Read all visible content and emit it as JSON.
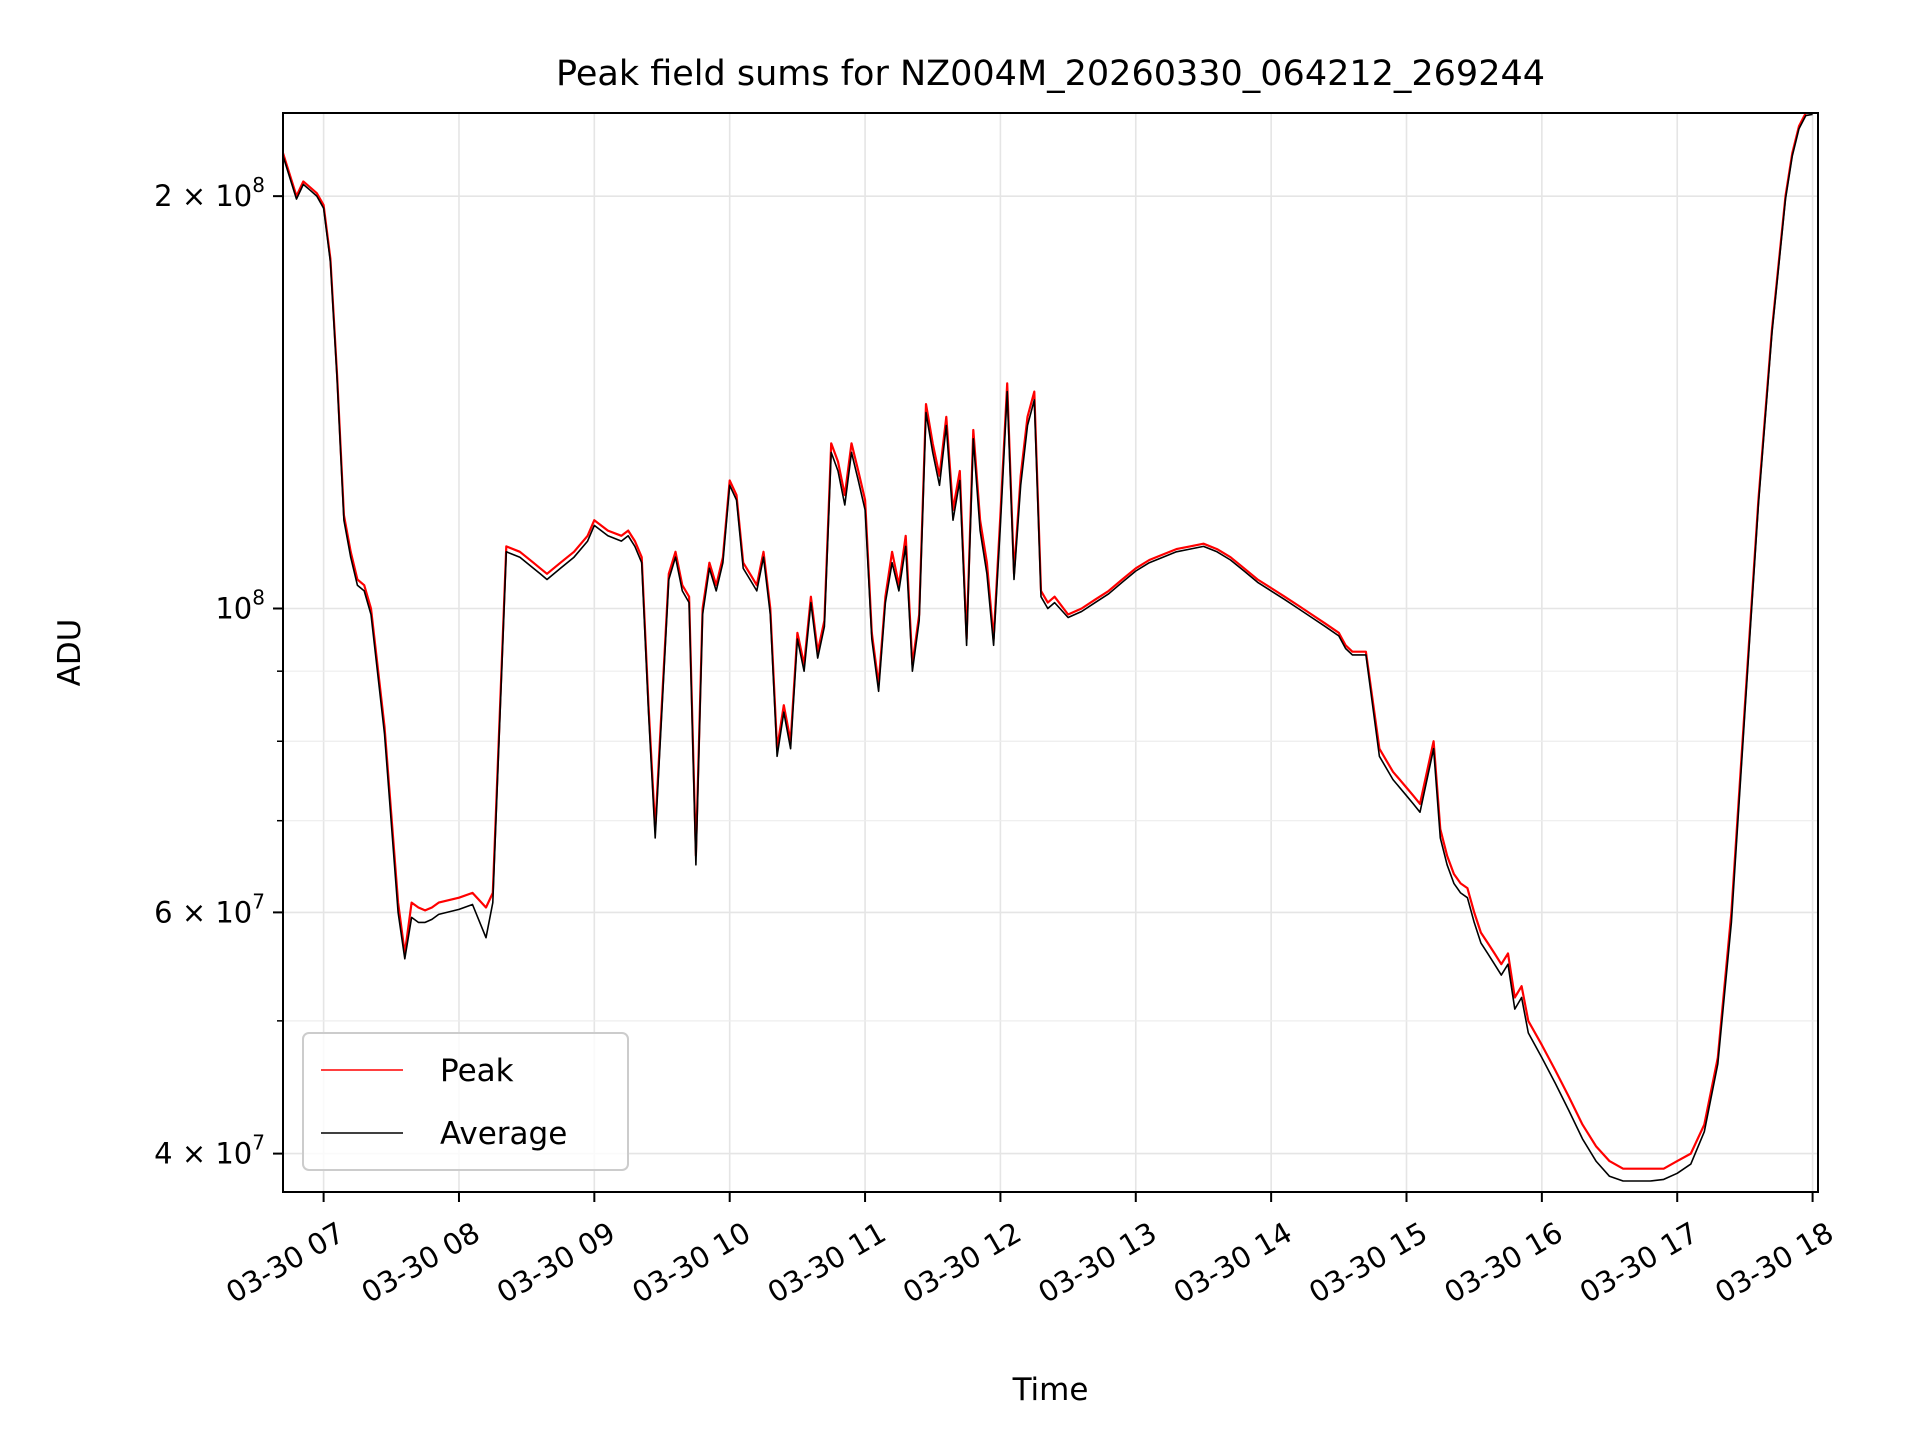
{
  "chart_data": {
    "type": "line",
    "title": "Peak field sums for NZ004M_20260330_064212_269244",
    "xlabel": "Time",
    "ylabel": "ADU",
    "yscale": "log",
    "ylim": [
      37500000,
      230000000
    ],
    "xlim_hours": [
      6.7,
      18.04
    ],
    "grid": true,
    "legend_position": "lower-left",
    "colors": {
      "peak": "#ff0000",
      "average": "#000000"
    },
    "x_ticks": [
      {
        "hour": 7,
        "label": "03-30 07"
      },
      {
        "hour": 8,
        "label": "03-30 08"
      },
      {
        "hour": 9,
        "label": "03-30 09"
      },
      {
        "hour": 10,
        "label": "03-30 10"
      },
      {
        "hour": 11,
        "label": "03-30 11"
      },
      {
        "hour": 12,
        "label": "03-30 12"
      },
      {
        "hour": 13,
        "label": "03-30 13"
      },
      {
        "hour": 14,
        "label": "03-30 14"
      },
      {
        "hour": 15,
        "label": "03-30 15"
      },
      {
        "hour": 16,
        "label": "03-30 16"
      },
      {
        "hour": 17,
        "label": "03-30 17"
      },
      {
        "hour": 18,
        "label": "03-30 18"
      }
    ],
    "y_major_ticks": [
      {
        "value": 40000000,
        "mantissa": "4",
        "exp": "7"
      },
      {
        "value": 60000000,
        "mantissa": "6",
        "exp": "7"
      },
      {
        "value": 100000000,
        "mantissa": "",
        "exp": "8"
      },
      {
        "value": 200000000,
        "mantissa": "2",
        "exp": "8"
      }
    ],
    "y_minor_ticks": [
      50000000,
      70000000,
      80000000,
      90000000
    ],
    "series": [
      {
        "name": "Peak",
        "time_hours": [
          6.7,
          6.8,
          6.85,
          6.9,
          6.95,
          7.0,
          7.05,
          7.1,
          7.15,
          7.2,
          7.25,
          7.3,
          7.35,
          7.45,
          7.55,
          7.6,
          7.65,
          7.7,
          7.75,
          7.8,
          7.85,
          8.0,
          8.1,
          8.2,
          8.25,
          8.35,
          8.45,
          8.55,
          8.6,
          8.65,
          8.75,
          8.85,
          8.95,
          9.0,
          9.1,
          9.2,
          9.25,
          9.3,
          9.35,
          9.4,
          9.45,
          9.55,
          9.6,
          9.65,
          9.7,
          9.75,
          9.8,
          9.85,
          9.9,
          9.95,
          10.0,
          10.05,
          10.1,
          10.15,
          10.2,
          10.25,
          10.3,
          10.35,
          10.4,
          10.45,
          10.5,
          10.55,
          10.6,
          10.65,
          10.7,
          10.75,
          10.8,
          10.85,
          10.9,
          10.95,
          11.0,
          11.05,
          11.1,
          11.15,
          11.2,
          11.25,
          11.3,
          11.35,
          11.4,
          11.45,
          11.5,
          11.55,
          11.6,
          11.65,
          11.7,
          11.75,
          11.8,
          11.85,
          11.9,
          11.95,
          12.0,
          12.05,
          12.1,
          12.15,
          12.2,
          12.25,
          12.3,
          12.35,
          12.4,
          12.5,
          12.6,
          12.7,
          12.8,
          12.9,
          13.0,
          13.1,
          13.2,
          13.3,
          13.4,
          13.5,
          13.6,
          13.7,
          13.8,
          13.9,
          14.0,
          14.1,
          14.2,
          14.3,
          14.4,
          14.5,
          14.55,
          14.6,
          14.7,
          14.8,
          14.9,
          15.0,
          15.05,
          15.1,
          15.2,
          15.25,
          15.3,
          15.35,
          15.4,
          15.45,
          15.5,
          15.55,
          15.6,
          15.65,
          15.7,
          15.75,
          15.8,
          15.85,
          15.9,
          16.0,
          16.1,
          16.2,
          16.3,
          16.4,
          16.5,
          16.6,
          16.7,
          16.8,
          16.9,
          17.0,
          17.1,
          17.2,
          17.3,
          17.4,
          17.5,
          17.6,
          17.7,
          17.8,
          17.85,
          17.9,
          17.95,
          18.0,
          18.04
        ],
        "values": [
          215000000,
          200000000,
          205000000,
          203000000,
          201000000,
          197000000,
          180000000,
          148000000,
          117000000,
          110000000,
          105000000,
          104000000,
          100000000,
          82000000,
          61000000,
          56000000,
          61000000,
          60500000,
          60200000,
          60500000,
          61000000,
          61500000,
          62000000,
          60500000,
          62000000,
          111000000,
          110000000,
          108000000,
          107000000,
          106000000,
          108000000,
          110000000,
          113000000,
          116000000,
          114000000,
          113000000,
          114000000,
          112000000,
          109000000,
          85000000,
          69000000,
          106000000,
          110000000,
          104000000,
          102000000,
          66000000,
          100000000,
          108000000,
          104000000,
          109000000,
          124000000,
          121000000,
          108000000,
          106000000,
          104000000,
          110000000,
          100000000,
          79000000,
          85000000,
          80000000,
          96000000,
          91000000,
          102000000,
          93000000,
          98000000,
          132000000,
          128000000,
          121000000,
          132000000,
          126000000,
          120000000,
          96000000,
          88000000,
          102000000,
          110000000,
          104000000,
          113000000,
          91000000,
          99000000,
          141000000,
          132000000,
          125000000,
          138000000,
          118000000,
          126000000,
          95000000,
          135000000,
          116000000,
          108000000,
          95000000,
          117000000,
          146000000,
          106000000,
          125000000,
          138000000,
          144000000,
          103000000,
          101000000,
          102000000,
          99000000,
          100000000,
          101500000,
          103000000,
          105000000,
          107000000,
          108500000,
          109500000,
          110500000,
          111000000,
          111500000,
          110500000,
          109000000,
          107000000,
          105000000,
          103500000,
          102000000,
          100500000,
          99000000,
          97500000,
          96000000,
          94000000,
          93000000,
          93000000,
          79000000,
          76000000,
          74000000,
          73000000,
          72000000,
          80000000,
          69000000,
          66000000,
          64000000,
          63000000,
          62500000,
          60000000,
          58000000,
          57000000,
          56000000,
          55000000,
          56000000,
          52000000,
          53000000,
          50000000,
          48000000,
          46000000,
          44000000,
          42000000,
          40500000,
          39500000,
          39000000,
          39000000,
          39000000,
          39000000,
          39500000,
          40000000,
          42000000,
          47000000,
          60000000,
          85000000,
          120000000,
          160000000,
          200000000,
          215000000,
          225000000,
          230000000,
          230000000
        ]
      },
      {
        "name": "Average",
        "time_hours": [
          6.7,
          6.8,
          6.85,
          6.9,
          6.95,
          7.0,
          7.05,
          7.1,
          7.15,
          7.2,
          7.25,
          7.3,
          7.35,
          7.45,
          7.55,
          7.6,
          7.65,
          7.7,
          7.75,
          7.8,
          7.85,
          8.0,
          8.1,
          8.2,
          8.25,
          8.35,
          8.45,
          8.55,
          8.6,
          8.65,
          8.75,
          8.85,
          8.95,
          9.0,
          9.1,
          9.2,
          9.25,
          9.3,
          9.35,
          9.4,
          9.45,
          9.55,
          9.6,
          9.65,
          9.7,
          9.75,
          9.8,
          9.85,
          9.9,
          9.95,
          10.0,
          10.05,
          10.1,
          10.15,
          10.2,
          10.25,
          10.3,
          10.35,
          10.4,
          10.45,
          10.5,
          10.55,
          10.6,
          10.65,
          10.7,
          10.75,
          10.8,
          10.85,
          10.9,
          10.95,
          11.0,
          11.05,
          11.1,
          11.15,
          11.2,
          11.25,
          11.3,
          11.35,
          11.4,
          11.45,
          11.5,
          11.55,
          11.6,
          11.65,
          11.7,
          11.75,
          11.8,
          11.85,
          11.9,
          11.95,
          12.0,
          12.05,
          12.1,
          12.15,
          12.2,
          12.25,
          12.3,
          12.35,
          12.4,
          12.5,
          12.6,
          12.7,
          12.8,
          12.9,
          13.0,
          13.1,
          13.2,
          13.3,
          13.4,
          13.5,
          13.6,
          13.7,
          13.8,
          13.9,
          14.0,
          14.1,
          14.2,
          14.3,
          14.4,
          14.5,
          14.55,
          14.6,
          14.7,
          14.8,
          14.9,
          15.0,
          15.05,
          15.1,
          15.2,
          15.25,
          15.3,
          15.35,
          15.4,
          15.45,
          15.5,
          15.55,
          15.6,
          15.65,
          15.7,
          15.75,
          15.8,
          15.85,
          15.9,
          16.0,
          16.1,
          16.2,
          16.3,
          16.4,
          16.5,
          16.6,
          16.7,
          16.8,
          16.9,
          17.0,
          17.1,
          17.2,
          17.3,
          17.4,
          17.5,
          17.6,
          17.7,
          17.8,
          17.85,
          17.9,
          17.95,
          18.0,
          18.04
        ],
        "values": [
          214000000,
          199000000,
          204000000,
          202000000,
          200000000,
          196000000,
          179000000,
          147000000,
          116000000,
          109000000,
          104000000,
          103000000,
          99000000,
          81000000,
          60000000,
          55500000,
          59500000,
          59000000,
          59000000,
          59300000,
          59800000,
          60300000,
          60800000,
          57500000,
          61000000,
          110000000,
          109000000,
          107000000,
          106000000,
          105000000,
          107000000,
          109000000,
          112000000,
          115000000,
          113000000,
          112000000,
          113000000,
          111000000,
          108000000,
          84000000,
          68000000,
          105000000,
          109000000,
          103000000,
          101000000,
          65000000,
          99000000,
          107000000,
          103000000,
          108000000,
          123000000,
          120000000,
          107000000,
          105000000,
          103000000,
          109000000,
          99000000,
          78000000,
          84000000,
          79000000,
          95000000,
          90000000,
          101000000,
          92000000,
          97000000,
          130000000,
          126000000,
          119000000,
          130000000,
          124000000,
          118000000,
          95000000,
          87000000,
          101000000,
          108000000,
          103000000,
          111000000,
          90000000,
          98000000,
          139000000,
          130000000,
          123000000,
          136000000,
          116000000,
          124000000,
          94000000,
          133000000,
          114000000,
          106000000,
          94000000,
          115000000,
          144000000,
          105000000,
          123000000,
          136000000,
          142000000,
          102000000,
          100000000,
          101000000,
          98500000,
          99500000,
          101000000,
          102500000,
          104500000,
          106500000,
          108000000,
          109000000,
          110000000,
          110500000,
          111000000,
          110000000,
          108500000,
          106500000,
          104500000,
          103000000,
          101500000,
          100000000,
          98500000,
          97000000,
          95500000,
          93500000,
          92500000,
          92500000,
          78000000,
          75000000,
          73000000,
          72000000,
          71000000,
          79000000,
          68000000,
          65000000,
          63000000,
          62000000,
          61500000,
          59000000,
          57000000,
          56000000,
          55000000,
          54000000,
          55000000,
          51000000,
          52000000,
          49000000,
          47000000,
          45000000,
          43000000,
          41000000,
          39500000,
          38500000,
          38200000,
          38200000,
          38200000,
          38300000,
          38700000,
          39300000,
          41500000,
          46500000,
          59000000,
          84000000,
          119000000,
          159000000,
          199000000,
          214000000,
          224000000,
          229000000,
          229500000
        ]
      }
    ]
  }
}
